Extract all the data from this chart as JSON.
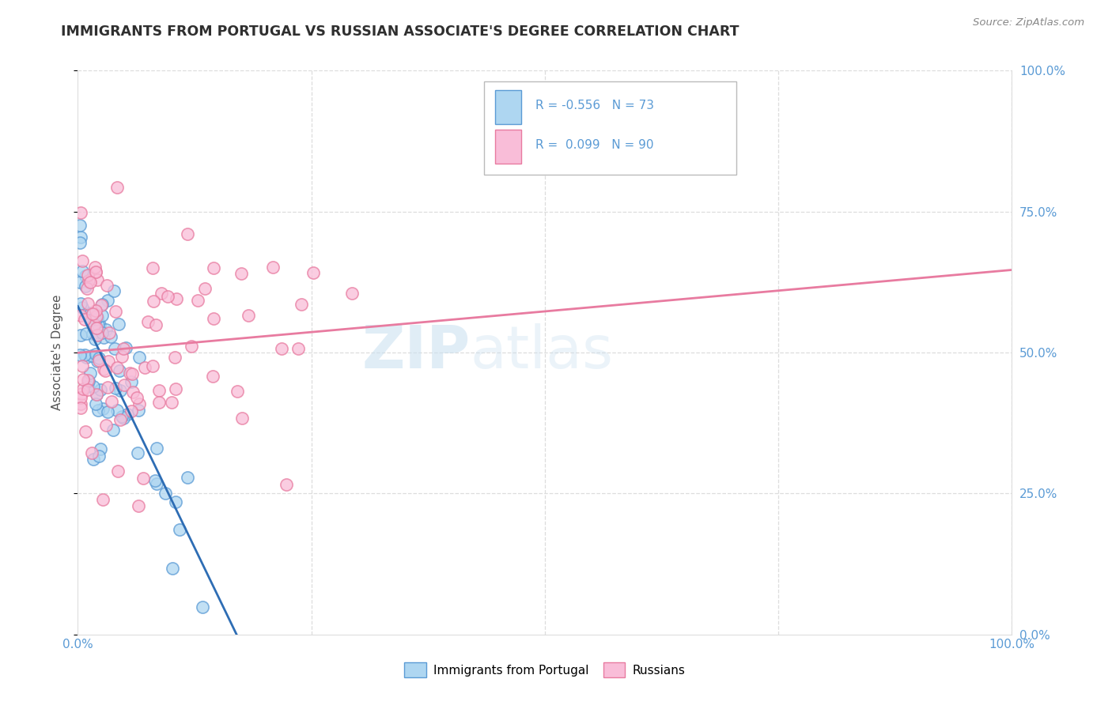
{
  "title": "IMMIGRANTS FROM PORTUGAL VS RUSSIAN ASSOCIATE'S DEGREE CORRELATION CHART",
  "source": "Source: ZipAtlas.com",
  "ylabel": "Associate's Degree",
  "color_portugal": "#AED6F1",
  "color_russia": "#F9BDD8",
  "color_edge_portugal": "#5B9BD5",
  "color_edge_russia": "#E87BA0",
  "color_line_portugal": "#2E6DB4",
  "color_line_russia": "#E87BA0",
  "watermark_zip": "ZIP",
  "watermark_atlas": "atlas",
  "watermark_color_zip": "#C5DCF0",
  "watermark_color_atlas": "#C5DCF0",
  "R_portugal": -0.556,
  "N_portugal": 73,
  "R_russia": 0.099,
  "N_russia": 90,
  "xlim": [
    0,
    100
  ],
  "ylim": [
    0,
    100
  ],
  "tick_color": "#5B9BD5",
  "grid_color": "#CCCCCC",
  "title_color": "#2F2F2F",
  "source_color": "#888888",
  "ylabel_color": "#555555",
  "legend_text_color": "#5B9BD5",
  "legend_label_color": "#333333"
}
